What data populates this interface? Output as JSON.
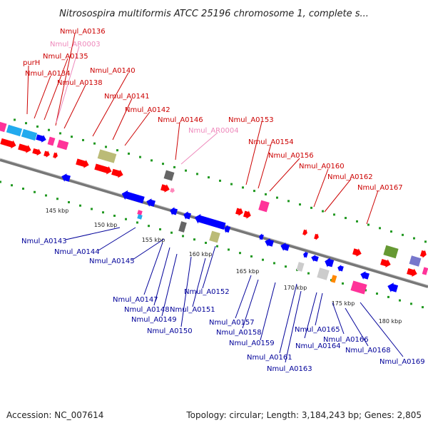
{
  "title": "Nitrosospira multiformis ATCC 25196 chromosome 1, complete s...",
  "footer": {
    "accession": "Accession: NC_007614",
    "summary": "Topology: circular; Length: 3,184,243 bp; Genes: 2,805"
  },
  "colors": {
    "top_label": "#cc0000",
    "rna_label": "#ee88bb",
    "bottom_label": "#000099",
    "backbone": "#888888",
    "forward_gene": "#ff0000",
    "reverse_gene": "#0000ff"
  },
  "scale_ticks": [
    "145 kbp",
    "150 kbp",
    "155 kbp",
    "160 kbp",
    "165 kbp",
    "170 kbp",
    "175 kbp",
    "180 kbp"
  ],
  "top_labels": [
    "Nmul_A0136",
    "Nmul_AR0003",
    "Nmul_A0135",
    "purH",
    "Nmul_A0134",
    "Nmul_A0138",
    "Nmul_A0140",
    "Nmul_A0141",
    "Nmul_A0142",
    "Nmul_A0146",
    "Nmul_AR0004",
    "Nmul_A0153",
    "Nmul_A0154",
    "Nmul_A0156",
    "Nmul_A0160",
    "Nmul_A0162",
    "Nmul_A0167"
  ],
  "bottom_labels": [
    "Nmul_A0143",
    "Nmul_A0144",
    "Nmul_A0145",
    "Nmul_A0147",
    "Nmul_A0148",
    "Nmul_A0149",
    "Nmul_A0150",
    "Nmul_A0151",
    "Nmul_A0152",
    "Nmul_A0157",
    "Nmul_A0158",
    "Nmul_A0159",
    "Nmul_A0161",
    "Nmul_A0163",
    "Nmul_A0164",
    "Nmul_A0165",
    "Nmul_A0166",
    "Nmul_A0168",
    "Nmul_A0169"
  ]
}
